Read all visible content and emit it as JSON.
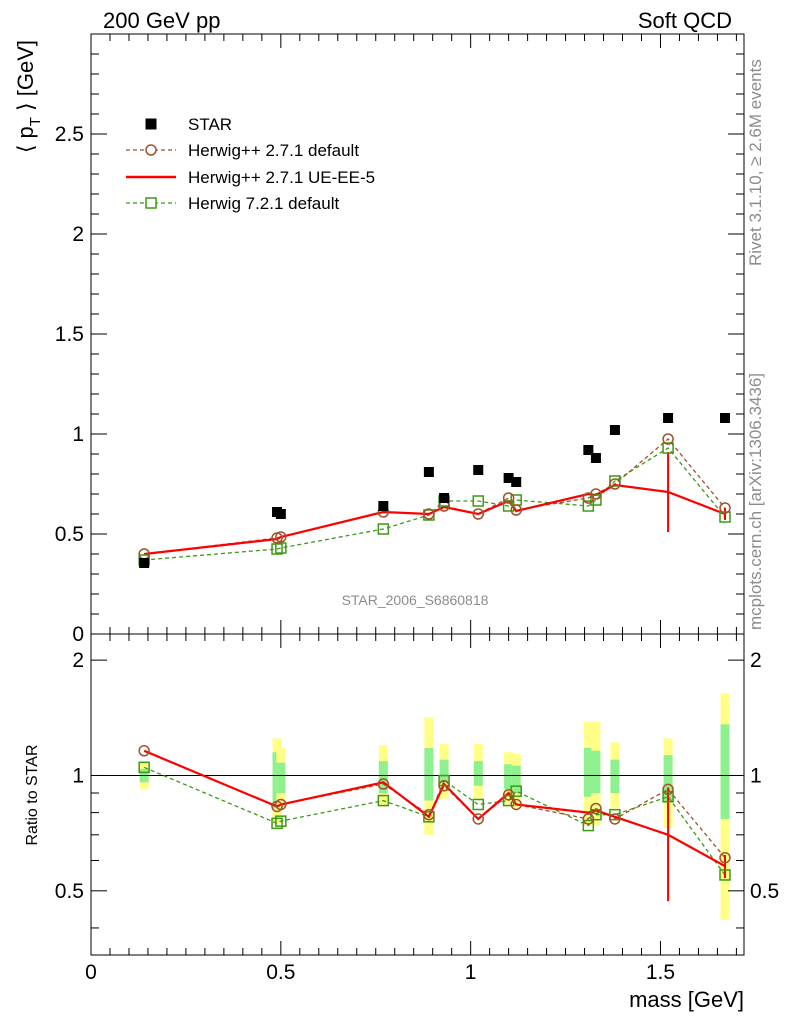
{
  "header": {
    "left": "200 GeV pp",
    "right": "Soft QCD"
  },
  "side_labels": {
    "top": "Rivet 3.1.10, ≥ 2.6M events",
    "bottom": "mcplots.cern.ch [arXiv:1306.3436]"
  },
  "colors": {
    "data": "#000000",
    "herwigpp_default": "#a0522d",
    "herwigpp_ueee5": "#ff0000",
    "herwig7_default": "#3c9a14",
    "band_outer": "#ffff88",
    "band_inner": "#8ff08f"
  },
  "chart_data": [
    {
      "type": "scatter",
      "panel": "main",
      "ylabel": "⟨ p_T ⟩ [GeV]",
      "xlim": [
        0,
        1.72
      ],
      "ylim": [
        0,
        3.0
      ],
      "yticks": [
        "0.5",
        "1",
        "1.5",
        "2",
        "2.5"
      ],
      "watermark": "STAR_2006_S6860818",
      "legend_placement": "top-left",
      "x": [
        0.14,
        0.49,
        0.5,
        0.77,
        0.89,
        0.93,
        1.02,
        1.1,
        1.12,
        1.31,
        1.33,
        1.38,
        1.52,
        1.67
      ],
      "series": [
        {
          "name": "STAR",
          "style": "square",
          "values": [
            0.355,
            0.61,
            0.6,
            0.64,
            0.81,
            0.68,
            0.82,
            0.78,
            0.76,
            0.92,
            0.88,
            1.02,
            1.08,
            1.08
          ]
        },
        {
          "name": "Herwig++ 2.7.1 default",
          "style": "circle-dashed",
          "values": [
            0.4,
            0.48,
            0.485,
            0.61,
            0.6,
            0.64,
            0.6,
            0.68,
            0.62,
            0.68,
            0.7,
            0.75,
            0.975,
            0.63
          ]
        },
        {
          "name": "Herwig++ 2.7.1 UE-EE-5",
          "style": "solid",
          "values": [
            0.4,
            0.475,
            0.485,
            0.61,
            0.6,
            0.635,
            0.6,
            0.665,
            0.615,
            0.7,
            0.695,
            0.745,
            0.71,
            0.6
          ],
          "errors": [
            0,
            0,
            0,
            0,
            0,
            0,
            0,
            0,
            0,
            0,
            0,
            0,
            0.2,
            0.03
          ]
        },
        {
          "name": "Herwig 7.2.1 default",
          "style": "square-open-dashed",
          "values": [
            0.37,
            0.425,
            0.43,
            0.525,
            0.595,
            0.665,
            0.665,
            0.64,
            0.67,
            0.64,
            0.67,
            0.765,
            0.93,
            0.585
          ]
        }
      ]
    },
    {
      "type": "scatter",
      "panel": "ratio",
      "ylabel": "Ratio to STAR",
      "xlabel": "mass [GeV]",
      "xlim": [
        0,
        1.72
      ],
      "ylim": [
        0.34,
        2.34
      ],
      "yticks": [
        "0.5",
        "1",
        "2"
      ],
      "xticks": [
        "0",
        "0.5",
        "1",
        "1.5"
      ],
      "x": [
        0.14,
        0.49,
        0.5,
        0.77,
        0.89,
        0.93,
        1.02,
        1.1,
        1.12,
        1.31,
        1.33,
        1.38,
        1.52,
        1.67
      ],
      "band_outer": [
        [
          0.92,
          1.09
        ],
        [
          0.75,
          1.25
        ],
        [
          0.82,
          1.18
        ],
        [
          0.83,
          1.2
        ],
        [
          0.7,
          1.42
        ],
        [
          0.87,
          1.21
        ],
        [
          0.87,
          1.21
        ],
        [
          0.84,
          1.15
        ],
        [
          0.82,
          1.14
        ],
        [
          0.74,
          1.38
        ],
        [
          0.74,
          1.38
        ],
        [
          0.82,
          1.22
        ],
        [
          0.73,
          1.25
        ],
        [
          0.42,
          1.64
        ]
      ],
      "band_inner": [
        [
          0.96,
          1.04
        ],
        [
          0.82,
          1.15
        ],
        [
          0.9,
          1.08
        ],
        [
          0.9,
          1.09
        ],
        [
          0.86,
          1.18
        ],
        [
          0.96,
          1.1
        ],
        [
          0.94,
          1.09
        ],
        [
          0.92,
          1.07
        ],
        [
          0.9,
          1.06
        ],
        [
          0.88,
          1.18
        ],
        [
          0.9,
          1.16
        ],
        [
          0.9,
          1.1
        ],
        [
          0.85,
          1.13
        ],
        [
          0.77,
          1.36
        ]
      ],
      "series": [
        {
          "name": "Herwig++ 2.7.1 default",
          "values": [
            1.16,
            0.83,
            0.84,
            0.95,
            0.79,
            0.94,
            0.77,
            0.89,
            0.84,
            0.77,
            0.82,
            0.77,
            0.92,
            0.61
          ]
        },
        {
          "name": "Herwig++ 2.7.1 UE-EE-5",
          "values": [
            1.16,
            0.83,
            0.84,
            0.96,
            0.78,
            0.95,
            0.77,
            0.9,
            0.84,
            0.8,
            0.81,
            0.78,
            0.7,
            0.58
          ],
          "errors": [
            0,
            0,
            0,
            0,
            0,
            0,
            0,
            0,
            0,
            0,
            0,
            0,
            0.23,
            0.04
          ]
        },
        {
          "name": "Herwig 7.2.1 default",
          "values": [
            1.05,
            0.75,
            0.76,
            0.86,
            0.78,
            0.97,
            0.84,
            0.86,
            0.91,
            0.74,
            0.79,
            0.79,
            0.88,
            0.55
          ]
        }
      ]
    }
  ]
}
